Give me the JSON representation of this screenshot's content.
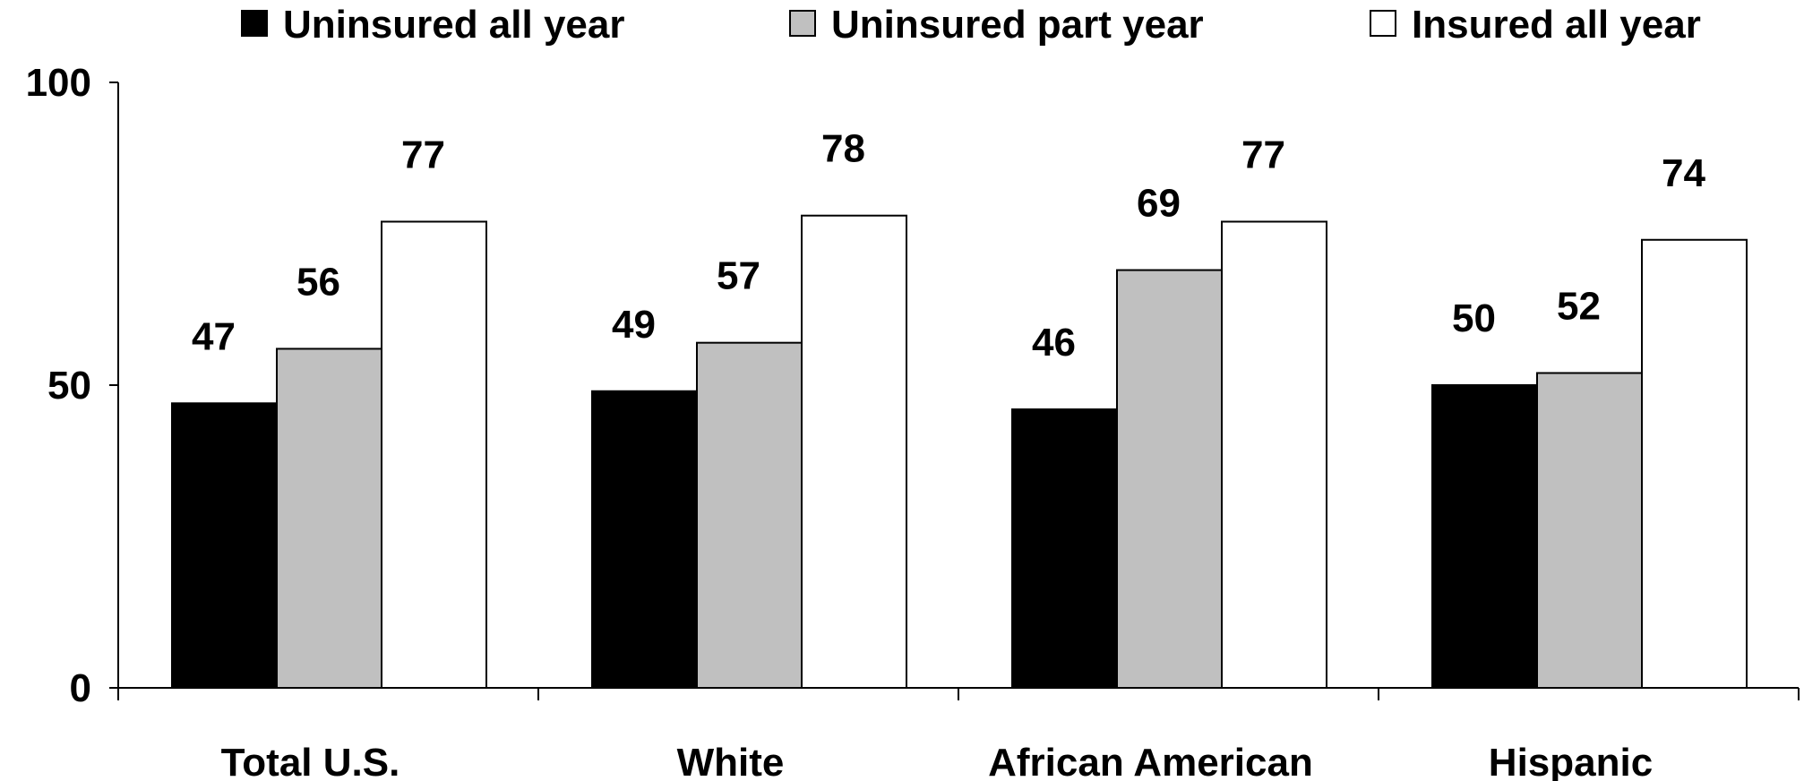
{
  "chart_data": {
    "type": "bar",
    "title": "",
    "xlabel": "",
    "ylabel": "",
    "ylim": [
      0,
      100
    ],
    "yticks": [
      0,
      50,
      100
    ],
    "grid": false,
    "legend_position": "top",
    "categories": [
      "Total U.S.",
      "White",
      "African American",
      "Hispanic"
    ],
    "series": [
      {
        "name": "Uninsured all year",
        "color": "#000000",
        "values": [
          47,
          49,
          46,
          50
        ]
      },
      {
        "name": "Uninsured part year",
        "color": "#c0c0c0",
        "values": [
          56,
          57,
          69,
          52
        ]
      },
      {
        "name": "Insured all year",
        "color": "#ffffff",
        "values": [
          77,
          78,
          77,
          74
        ]
      }
    ]
  }
}
